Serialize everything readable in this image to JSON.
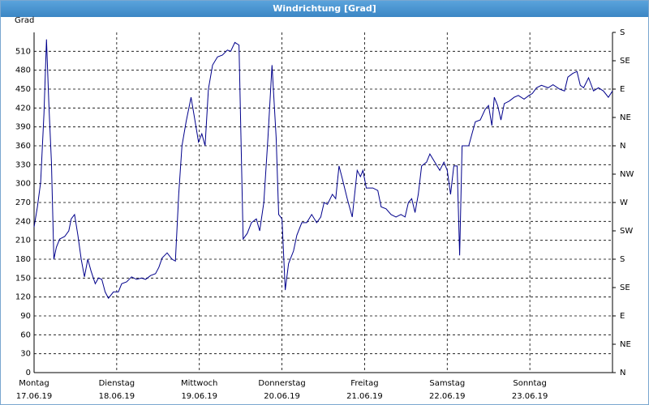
{
  "chart_data": {
    "type": "line",
    "title": "Windrichtung [Grad]",
    "y_label": "Grad",
    "x": [
      0,
      0.04,
      0.08,
      0.12,
      0.15,
      0.18,
      0.21,
      0.24,
      0.27,
      0.31,
      0.37,
      0.42,
      0.45,
      0.49,
      0.53,
      0.57,
      0.61,
      0.65,
      0.69,
      0.74,
      0.78,
      0.82,
      0.86,
      0.9,
      0.96,
      1.02,
      1.06,
      1.12,
      1.18,
      1.24,
      1.3,
      1.35,
      1.41,
      1.47,
      1.51,
      1.55,
      1.61,
      1.67,
      1.71,
      1.75,
      1.79,
      1.84,
      1.9,
      1.95,
      1.99,
      2.03,
      2.07,
      2.11,
      2.16,
      2.22,
      2.28,
      2.34,
      2.38,
      2.43,
      2.48,
      2.53,
      2.58,
      2.63,
      2.69,
      2.73,
      2.78,
      2.83,
      2.88,
      2.93,
      2.96,
      3.0,
      3.04,
      3.08,
      3.14,
      3.18,
      3.24,
      3.3,
      3.36,
      3.42,
      3.47,
      3.51,
      3.55,
      3.61,
      3.65,
      3.69,
      3.73,
      3.79,
      3.85,
      3.91,
      3.95,
      3.98,
      4.02,
      4.1,
      4.16,
      4.2,
      4.26,
      4.32,
      4.38,
      4.44,
      4.49,
      4.53,
      4.57,
      4.61,
      4.65,
      4.69,
      4.75,
      4.79,
      4.85,
      4.91,
      4.96,
      5.0,
      5.04,
      5.08,
      5.12,
      5.15,
      5.18,
      5.26,
      5.3,
      5.34,
      5.4,
      5.46,
      5.5,
      5.54,
      5.57,
      5.61,
      5.65,
      5.69,
      5.75,
      5.81,
      5.86,
      5.93,
      5.99,
      6.03,
      6.08,
      6.14,
      6.22,
      6.28,
      6.36,
      6.42,
      6.46,
      6.52,
      6.57,
      6.61,
      6.65,
      6.71,
      6.77,
      6.83,
      6.89,
      6.95,
      7.0
    ],
    "series": [
      {
        "color": "#00008b",
        "values": [
          231,
          263,
          302,
          411,
          529,
          424,
          334,
          180,
          199,
          212,
          216,
          225,
          244,
          251,
          218,
          180,
          152,
          180,
          161,
          141,
          150,
          148,
          128,
          118,
          128,
          128,
          141,
          144,
          152,
          148,
          150,
          148,
          154,
          157,
          167,
          182,
          190,
          180,
          177,
          283,
          360,
          398,
          437,
          398,
          366,
          379,
          360,
          450,
          488,
          501,
          504,
          512,
          510,
          524,
          520,
          212,
          221,
          238,
          244,
          225,
          270,
          373,
          488,
          373,
          251,
          244,
          131,
          173,
          193,
          218,
          238,
          238,
          251,
          238,
          247,
          270,
          267,
          283,
          276,
          328,
          308,
          276,
          247,
          321,
          311,
          321,
          293,
          293,
          289,
          263,
          260,
          251,
          247,
          251,
          247,
          270,
          276,
          254,
          283,
          328,
          334,
          347,
          334,
          321,
          334,
          321,
          283,
          328,
          328,
          186,
          360,
          360,
          379,
          398,
          401,
          418,
          424,
          392,
          437,
          424,
          401,
          427,
          431,
          437,
          440,
          434,
          440,
          443,
          452,
          456,
          452,
          457,
          450,
          447,
          469,
          475,
          478,
          456,
          452,
          468,
          447,
          452,
          447,
          437,
          447
        ]
      }
    ],
    "xlim": [
      0,
      7
    ],
    "xticks": [
      {
        "value": 0,
        "label": "Montag",
        "date": "17.06.19"
      },
      {
        "value": 1,
        "label": "Dienstag",
        "date": "18.06.19"
      },
      {
        "value": 2,
        "label": "Mittwoch",
        "date": "19.06.19"
      },
      {
        "value": 3,
        "label": "Donnerstag",
        "date": "20.06.19"
      },
      {
        "value": 4,
        "label": "Freitag",
        "date": "21.06.19"
      },
      {
        "value": 5,
        "label": "Samstag",
        "date": "22.06.19"
      },
      {
        "value": 6,
        "label": "Sonntag",
        "date": "23.06.19"
      }
    ],
    "ylim": [
      0,
      540
    ],
    "yticks": [
      0,
      30,
      60,
      90,
      120,
      150,
      180,
      210,
      240,
      270,
      300,
      330,
      360,
      390,
      420,
      450,
      480,
      510
    ],
    "y2lim": [
      0,
      540
    ],
    "y2ticks": [
      {
        "value": 0,
        "label": "N"
      },
      {
        "value": 45,
        "label": "NE"
      },
      {
        "value": 90,
        "label": "E"
      },
      {
        "value": 135,
        "label": "SE"
      },
      {
        "value": 180,
        "label": "S"
      },
      {
        "value": 225,
        "label": "SW"
      },
      {
        "value": 270,
        "label": "W"
      },
      {
        "value": 315,
        "label": "NW"
      },
      {
        "value": 360,
        "label": "N"
      },
      {
        "value": 405,
        "label": "NE"
      },
      {
        "value": 450,
        "label": "E"
      },
      {
        "value": 495,
        "label": "SE"
      },
      {
        "value": 540,
        "label": "S"
      }
    ],
    "grid": true
  }
}
